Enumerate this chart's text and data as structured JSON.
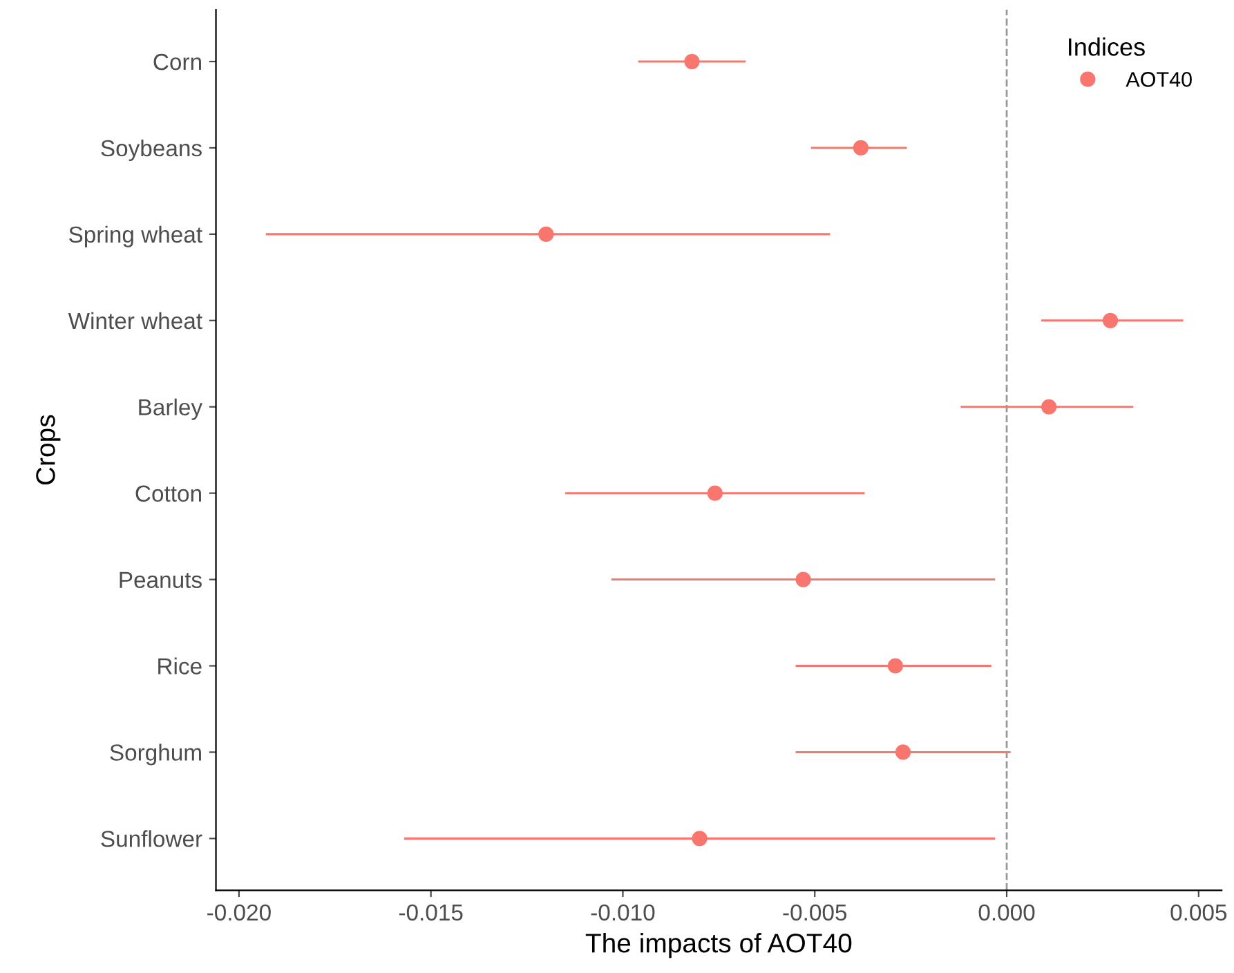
{
  "chart_data": {
    "type": "scatter",
    "orientation": "horizontal",
    "xlabel": "The impacts of AOT40",
    "ylabel": "Crops",
    "legend_title": "Indices",
    "categories": [
      "Corn",
      "Soybeans",
      "Spring wheat",
      "Winter wheat",
      "Barley",
      "Cotton",
      "Peanuts",
      "Rice",
      "Sorghum",
      "Sunflower"
    ],
    "series": [
      {
        "name": "AOT40",
        "color": "#f8766d",
        "values": [
          -0.0082,
          -0.0038,
          -0.012,
          0.0027,
          0.0011,
          -0.0076,
          -0.0053,
          -0.0029,
          -0.0027,
          -0.008
        ],
        "errors": [
          [
            -0.0096,
            -0.0068
          ],
          [
            -0.0051,
            -0.0026
          ],
          [
            -0.0193,
            -0.0046
          ],
          [
            0.0009,
            0.0046
          ],
          [
            -0.0012,
            0.0033
          ],
          [
            -0.0115,
            -0.0037
          ],
          [
            -0.0103,
            -0.0003
          ],
          [
            -0.0055,
            -0.0004
          ],
          [
            -0.0055,
            0.0001
          ],
          [
            -0.0157,
            -0.0003
          ]
        ]
      }
    ],
    "xlim": [
      -0.0206,
      0.0056
    ],
    "xticks": [
      {
        "value": -0.02,
        "label": "-0.020"
      },
      {
        "value": -0.015,
        "label": "-0.015"
      },
      {
        "value": -0.01,
        "label": "-0.010"
      },
      {
        "value": -0.005,
        "label": "-0.005"
      },
      {
        "value": 0,
        "label": "0.000"
      },
      {
        "value": 0.005,
        "label": "0.005"
      }
    ],
    "ref_lines": [
      {
        "axis": "x",
        "value": 0,
        "label": null,
        "color": "#999999",
        "line_style": "dashed"
      }
    ],
    "marker": "circle",
    "grid": false,
    "legend": "top right"
  }
}
